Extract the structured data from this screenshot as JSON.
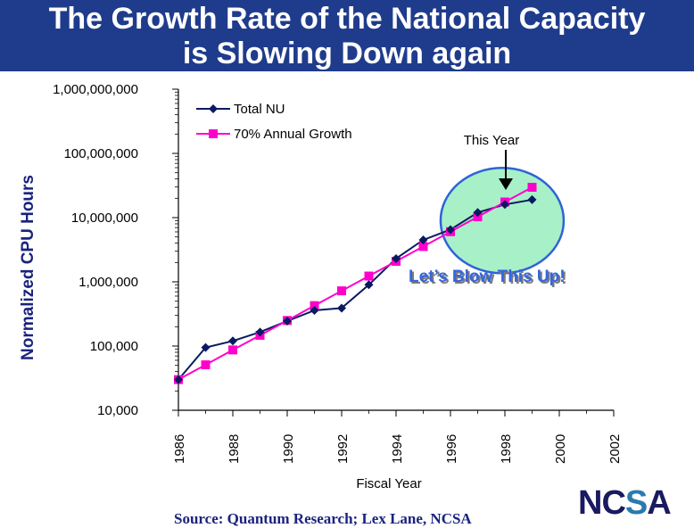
{
  "title_lines": [
    "The  Growth Rate of the National Capacity",
    "is Slowing Down again"
  ],
  "source": "Source: Quantum Research; Lex Lane, NCSA",
  "logo": {
    "text": "NCSA",
    "left": "NC",
    "mark": "S",
    "right": "A"
  },
  "chart_data": {
    "type": "line",
    "title": "The  Growth Rate of the National Capacity is Slowing Down again",
    "xlabel": "Fiscal Year",
    "ylabel": "Normalized CPU Hours",
    "yscale": "log",
    "xlim": [
      1986,
      2002
    ],
    "ylim": [
      10000,
      1000000000
    ],
    "x_ticks": [
      1986,
      1988,
      1990,
      1992,
      1994,
      1996,
      1998,
      2000,
      2002
    ],
    "y_ticks": [
      10000,
      100000,
      1000000,
      10000000,
      100000000,
      1000000000
    ],
    "y_tick_labels": [
      "10,000",
      "100,000",
      "1,000,000",
      "10,000,000",
      "100,000,000",
      "1,000,000,000"
    ],
    "legend_position": "top-left",
    "series": [
      {
        "name": "Total NU",
        "color": "#0a1a60",
        "marker": "diamond",
        "x": [
          1986,
          1987,
          1988,
          1989,
          1990,
          1991,
          1992,
          1993,
          1994,
          1995,
          1996,
          1997,
          1998,
          1999
        ],
        "values": [
          30000,
          95000,
          120000,
          165000,
          245000,
          360000,
          390000,
          900000,
          2300000,
          4500000,
          6500000,
          12000000,
          16000000,
          19000000
        ]
      },
      {
        "name": "70% Annual Growth",
        "color": "#ff00cc",
        "marker": "square",
        "x": [
          1986,
          1987,
          1988,
          1989,
          1990,
          1991,
          1992,
          1993,
          1994,
          1995,
          1996,
          1997,
          1998,
          1999
        ],
        "values": [
          30000,
          51000,
          87000,
          147000,
          250000,
          426000,
          724000,
          1230000,
          2090000,
          3550000,
          6040000,
          10300000,
          17500000,
          29700000
        ]
      }
    ],
    "annotations": {
      "this_year": "This Year",
      "callout": "Let’s Blow This Up!"
    }
  }
}
